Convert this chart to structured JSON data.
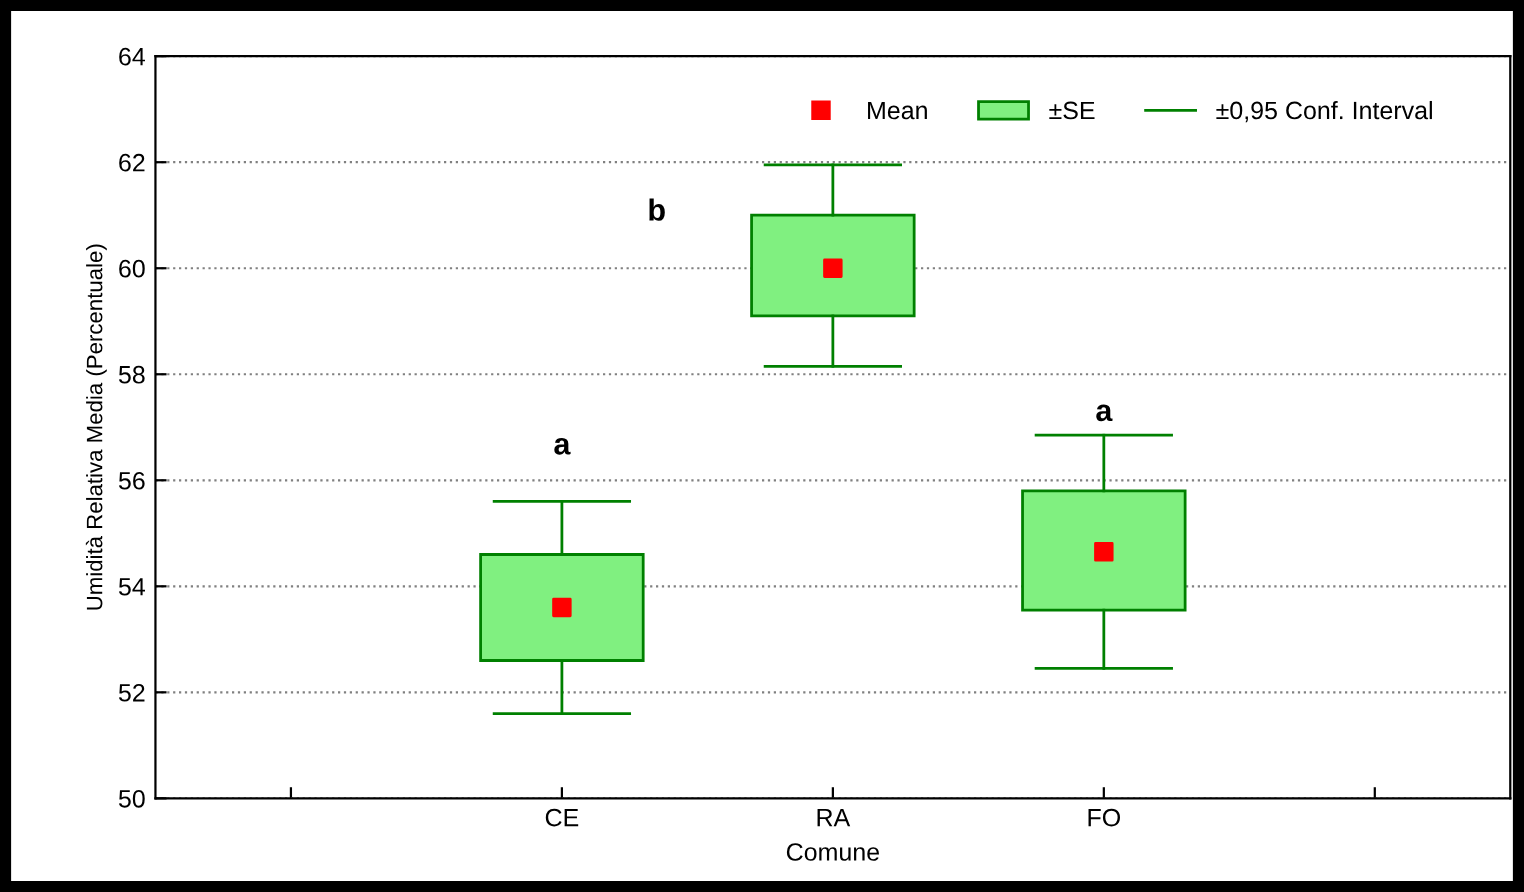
{
  "chart_data": {
    "type": "box",
    "xlabel": "Comune",
    "ylabel": "Umidità Relativa Media (Percentuale)",
    "categories": [
      null,
      "CE",
      "RA",
      "FO",
      null
    ],
    "series": [
      {
        "name": "Mean",
        "type": "scatter",
        "color": "#ff0000",
        "values": [
          null,
          53.6,
          60.0,
          54.65,
          null
        ]
      },
      {
        "name": "±SE",
        "color": "#80f080",
        "boxes": [
          null,
          {
            "low": 51.6,
            "q1": 52.6,
            "q3": 54.6,
            "high": 55.6
          },
          {
            "low": 58.15,
            "q1": 59.1,
            "q3": 61.0,
            "high": 61.95
          },
          {
            "low": 52.45,
            "q1": 53.55,
            "q3": 55.8,
            "high": 56.85
          },
          null
        ]
      }
    ],
    "ylim": [
      50,
      64
    ],
    "yticks": [
      50,
      52,
      54,
      56,
      58,
      60,
      62,
      64
    ],
    "grid": "y",
    "legend": "top right",
    "marker": "square",
    "annotations": [
      "a",
      "b",
      "a",
      "±0,95 Conf. Interval"
    ]
  }
}
